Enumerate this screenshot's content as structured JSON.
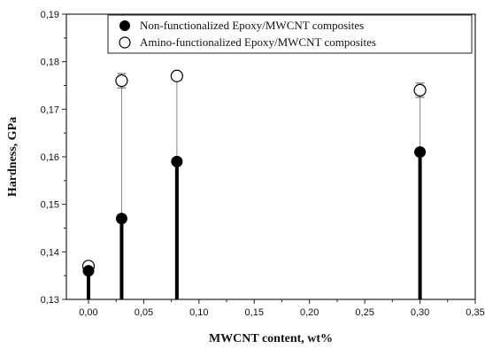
{
  "chart_data": {
    "type": "scatter",
    "title": "",
    "xlabel": "MWCNT content, wt%",
    "ylabel": "Hardness, GPa",
    "xlim": [
      -0.02,
      0.35
    ],
    "ylim": [
      0.13,
      0.19
    ],
    "x_ticks": [
      0.0,
      0.05,
      0.1,
      0.15,
      0.2,
      0.25,
      0.3,
      0.35
    ],
    "x_tick_labels": [
      "0,00",
      "0,05",
      "0,10",
      "0,15",
      "0,20",
      "0,25",
      "0,30",
      "0,35"
    ],
    "y_ticks": [
      0.13,
      0.14,
      0.15,
      0.16,
      0.17,
      0.18,
      0.19
    ],
    "y_tick_labels": [
      "0,13",
      "0,14",
      "0,15",
      "0,16",
      "0,17",
      "0,18",
      "0,19"
    ],
    "grid": false,
    "legend_position": "top-right",
    "drop_lines": true,
    "series": [
      {
        "name": "Non-functionalized Epoxy/MWCNT composites",
        "marker": "filled-circle",
        "color": "#000000",
        "x": [
          0.0,
          0.03,
          0.08,
          0.3
        ],
        "y": [
          0.136,
          0.147,
          0.159,
          0.161
        ]
      },
      {
        "name": "Amino-functionalized Epoxy/MWCNT composites",
        "marker": "open-circle",
        "color": "#000000",
        "x": [
          0.0,
          0.03,
          0.08,
          0.3
        ],
        "y": [
          0.137,
          0.176,
          0.177,
          0.174
        ],
        "error": [
          0.0005,
          0.0015,
          0.0008,
          0.0015
        ]
      }
    ]
  }
}
